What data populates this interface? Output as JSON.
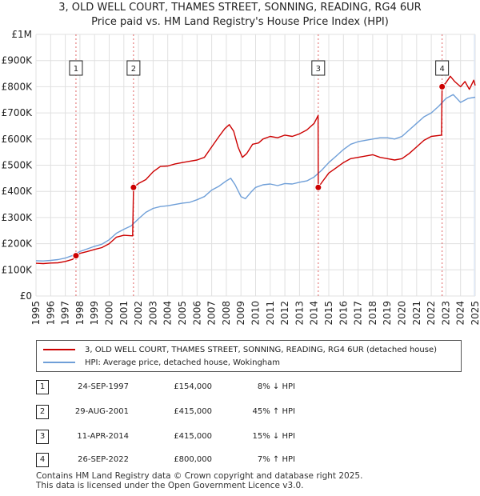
{
  "title_line1": "3, OLD WELL COURT, THAMES STREET, SONNING, READING, RG4 6UR",
  "title_line2": "Price paid vs. HM Land Registry's House Price Index (HPI)",
  "colors": {
    "red": "#cc0000",
    "blue": "#6f9fd8",
    "grid": "#e0e0e0",
    "shade": "#dde7f5"
  },
  "legend": {
    "red_label": "3, OLD WELL COURT, THAMES STREET, SONNING, READING, RG4 6UR (detached house)",
    "blue_label": "HPI: Average price, detached house, Wokingham"
  },
  "transactions": [
    {
      "num": "1",
      "date": "24-SEP-1997",
      "price": "£154,000",
      "hpi": "8% ↓ HPI"
    },
    {
      "num": "2",
      "date": "29-AUG-2001",
      "price": "£415,000",
      "hpi": "45% ↑ HPI"
    },
    {
      "num": "3",
      "date": "11-APR-2014",
      "price": "£415,000",
      "hpi": "15% ↓ HPI"
    },
    {
      "num": "4",
      "date": "26-SEP-2022",
      "price": "£800,000",
      "hpi": "7% ↑ HPI"
    }
  ],
  "footer_line1": "Contains HM Land Registry data © Crown copyright and database right 2025.",
  "footer_line2": "This data is licensed under the Open Government Licence v3.0.",
  "chart_data": {
    "type": "line",
    "title": "3, OLD WELL COURT, THAMES STREET, SONNING, READING, RG4 6UR",
    "subtitle": "Price paid vs. HM Land Registry's House Price Index (HPI)",
    "xlim": [
      1995,
      2025
    ],
    "ylim": [
      0,
      1000000
    ],
    "x_ticks": [
      1995,
      1996,
      1997,
      1998,
      1999,
      2000,
      2001,
      2002,
      2003,
      2004,
      2005,
      2006,
      2007,
      2008,
      2009,
      2010,
      2011,
      2012,
      2013,
      2014,
      2015,
      2016,
      2017,
      2018,
      2019,
      2020,
      2021,
      2022,
      2023,
      2024,
      2025
    ],
    "y_ticks": [
      {
        "value": 0,
        "label": "£0"
      },
      {
        "value": 100000,
        "label": "£100K"
      },
      {
        "value": 200000,
        "label": "£200K"
      },
      {
        "value": 300000,
        "label": "£300K"
      },
      {
        "value": 400000,
        "label": "£400K"
      },
      {
        "value": 500000,
        "label": "£500K"
      },
      {
        "value": 600000,
        "label": "£600K"
      },
      {
        "value": 700000,
        "label": "£700K"
      },
      {
        "value": 800000,
        "label": "£800K"
      },
      {
        "value": 900000,
        "label": "£900K"
      },
      {
        "value": 1000000,
        "label": "£1M"
      }
    ],
    "grid": true,
    "series": [
      {
        "name": "3, OLD WELL COURT, THAMES STREET, SONNING, READING, RG4 6UR (detached house)",
        "color": "#cc0000",
        "points": [
          [
            1995.0,
            125000
          ],
          [
            1995.5,
            124000
          ],
          [
            1996.0,
            126000
          ],
          [
            1996.5,
            127000
          ],
          [
            1997.0,
            132000
          ],
          [
            1997.5,
            140000
          ],
          [
            1997.73,
            154000
          ],
          [
            1998.0,
            163000
          ],
          [
            1998.5,
            170000
          ],
          [
            1999.0,
            178000
          ],
          [
            1999.5,
            185000
          ],
          [
            2000.0,
            200000
          ],
          [
            2000.5,
            225000
          ],
          [
            2001.0,
            232000
          ],
          [
            2001.6,
            230000
          ],
          [
            2001.66,
            415000
          ],
          [
            2002.0,
            430000
          ],
          [
            2002.5,
            445000
          ],
          [
            2003.0,
            475000
          ],
          [
            2003.5,
            495000
          ],
          [
            2004.0,
            497000
          ],
          [
            2004.5,
            505000
          ],
          [
            2005.0,
            510000
          ],
          [
            2005.5,
            515000
          ],
          [
            2006.0,
            520000
          ],
          [
            2006.5,
            530000
          ],
          [
            2007.0,
            570000
          ],
          [
            2007.5,
            610000
          ],
          [
            2007.9,
            640000
          ],
          [
            2008.2,
            655000
          ],
          [
            2008.5,
            630000
          ],
          [
            2008.8,
            570000
          ],
          [
            2009.1,
            530000
          ],
          [
            2009.4,
            545000
          ],
          [
            2009.8,
            580000
          ],
          [
            2010.2,
            585000
          ],
          [
            2010.5,
            600000
          ],
          [
            2011.0,
            610000
          ],
          [
            2011.5,
            605000
          ],
          [
            2012.0,
            615000
          ],
          [
            2012.5,
            610000
          ],
          [
            2013.0,
            620000
          ],
          [
            2013.5,
            635000
          ],
          [
            2014.0,
            660000
          ],
          [
            2014.27,
            690000
          ],
          [
            2014.28,
            415000
          ],
          [
            2014.6,
            440000
          ],
          [
            2015.0,
            470000
          ],
          [
            2015.5,
            490000
          ],
          [
            2016.0,
            510000
          ],
          [
            2016.5,
            525000
          ],
          [
            2017.0,
            530000
          ],
          [
            2017.5,
            535000
          ],
          [
            2018.0,
            540000
          ],
          [
            2018.5,
            530000
          ],
          [
            2019.0,
            525000
          ],
          [
            2019.5,
            520000
          ],
          [
            2020.0,
            525000
          ],
          [
            2020.5,
            545000
          ],
          [
            2021.0,
            570000
          ],
          [
            2021.5,
            595000
          ],
          [
            2022.0,
            610000
          ],
          [
            2022.7,
            615000
          ],
          [
            2022.74,
            800000
          ],
          [
            2023.0,
            815000
          ],
          [
            2023.3,
            840000
          ],
          [
            2023.6,
            820000
          ],
          [
            2024.0,
            800000
          ],
          [
            2024.3,
            820000
          ],
          [
            2024.6,
            790000
          ],
          [
            2024.9,
            825000
          ],
          [
            2025.0,
            805000
          ]
        ]
      },
      {
        "name": "HPI: Average price, detached house, Wokingham",
        "color": "#6f9fd8",
        "points": [
          [
            1995.0,
            135000
          ],
          [
            1995.5,
            134000
          ],
          [
            1996.0,
            136000
          ],
          [
            1996.5,
            139000
          ],
          [
            1997.0,
            145000
          ],
          [
            1997.5,
            155000
          ],
          [
            1998.0,
            170000
          ],
          [
            1998.5,
            180000
          ],
          [
            1999.0,
            190000
          ],
          [
            1999.5,
            198000
          ],
          [
            2000.0,
            215000
          ],
          [
            2000.5,
            240000
          ],
          [
            2001.0,
            255000
          ],
          [
            2001.5,
            268000
          ],
          [
            2002.0,
            295000
          ],
          [
            2002.5,
            320000
          ],
          [
            2003.0,
            335000
          ],
          [
            2003.5,
            342000
          ],
          [
            2004.0,
            345000
          ],
          [
            2004.5,
            350000
          ],
          [
            2005.0,
            355000
          ],
          [
            2005.5,
            358000
          ],
          [
            2006.0,
            368000
          ],
          [
            2006.5,
            380000
          ],
          [
            2007.0,
            405000
          ],
          [
            2007.5,
            420000
          ],
          [
            2008.0,
            440000
          ],
          [
            2008.3,
            450000
          ],
          [
            2008.6,
            425000
          ],
          [
            2009.0,
            380000
          ],
          [
            2009.3,
            372000
          ],
          [
            2009.7,
            398000
          ],
          [
            2010.0,
            415000
          ],
          [
            2010.5,
            425000
          ],
          [
            2011.0,
            428000
          ],
          [
            2011.5,
            422000
          ],
          [
            2012.0,
            430000
          ],
          [
            2012.5,
            428000
          ],
          [
            2013.0,
            435000
          ],
          [
            2013.5,
            440000
          ],
          [
            2014.0,
            455000
          ],
          [
            2014.5,
            480000
          ],
          [
            2015.0,
            510000
          ],
          [
            2015.5,
            535000
          ],
          [
            2016.0,
            560000
          ],
          [
            2016.5,
            580000
          ],
          [
            2017.0,
            590000
          ],
          [
            2017.5,
            595000
          ],
          [
            2018.0,
            600000
          ],
          [
            2018.5,
            605000
          ],
          [
            2019.0,
            605000
          ],
          [
            2019.5,
            600000
          ],
          [
            2020.0,
            610000
          ],
          [
            2020.5,
            635000
          ],
          [
            2021.0,
            660000
          ],
          [
            2021.5,
            685000
          ],
          [
            2022.0,
            700000
          ],
          [
            2022.5,
            725000
          ],
          [
            2023.0,
            755000
          ],
          [
            2023.5,
            770000
          ],
          [
            2024.0,
            740000
          ],
          [
            2024.5,
            755000
          ],
          [
            2025.0,
            760000
          ]
        ]
      }
    ],
    "sales": [
      {
        "num": "1",
        "x": 1997.73,
        "price": 154000
      },
      {
        "num": "2",
        "x": 2001.66,
        "price": 415000
      },
      {
        "num": "3",
        "x": 2014.28,
        "price": 415000
      },
      {
        "num": "4",
        "x": 2022.74,
        "price": 800000
      }
    ],
    "shaded_from": 2024.9
  }
}
